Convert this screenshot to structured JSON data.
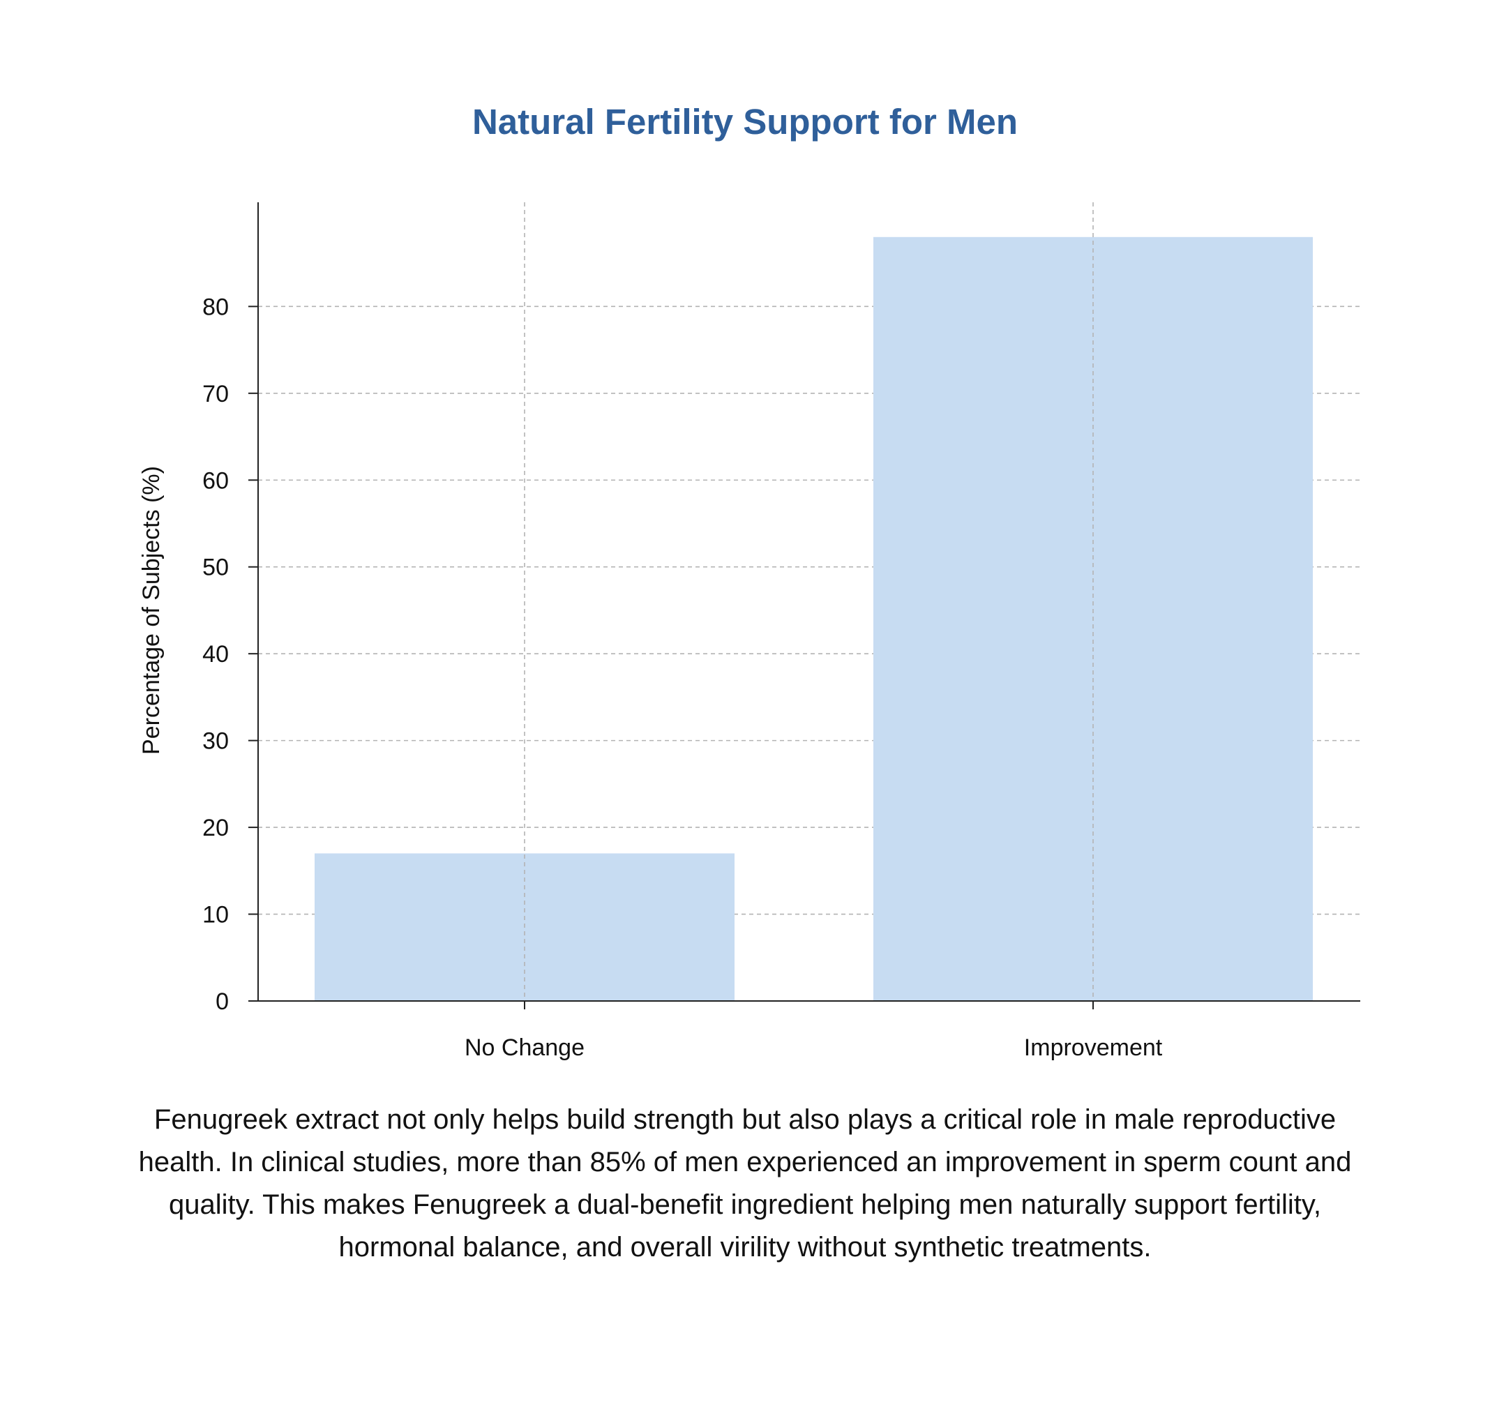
{
  "chart_data": {
    "type": "bar",
    "title": "Natural Fertility Support for Men",
    "xlabel": "",
    "ylabel": "Percentage of Subjects (%)",
    "categories": [
      "No Change",
      "Improvement"
    ],
    "values": [
      17,
      88
    ],
    "ylim": [
      0,
      92
    ],
    "yticks": [
      0,
      10,
      20,
      30,
      40,
      50,
      60,
      70,
      80
    ],
    "grid": true,
    "legend": "none"
  },
  "caption": "Fenugreek extract not only helps build strength but also plays a critical role in male reproductive health. In clinical studies, more than 85% of men experienced an improvement in sperm count and quality. This makes Fenugreek a dual-benefit ingredient helping men naturally support fertility, hormonal balance, and overall virility without synthetic treatments.",
  "colors": {
    "title": "#2f5f9a",
    "bar": "#c7dcf2",
    "grid": "#b3b3b3",
    "axis": "#222222",
    "text": "#111111"
  }
}
